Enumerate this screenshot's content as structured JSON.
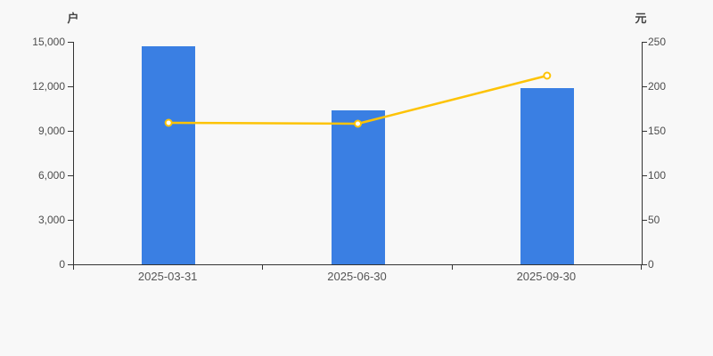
{
  "page": {
    "background": "#f8f8f8"
  },
  "chart_data": {
    "type": "bar",
    "subtype": "bar-line-dual-axis",
    "title": "",
    "legend_position": "none",
    "grid_lines": false,
    "categories": [
      "2025-03-31",
      "2025-06-30",
      "2025-09-30"
    ],
    "series": [
      {
        "type": "bar",
        "axis": "left",
        "unit": "户",
        "values": [
          14700,
          10400,
          11900
        ],
        "color": "#3a7fe3"
      },
      {
        "type": "line",
        "axis": "right",
        "unit": "元",
        "values": [
          159,
          158,
          212
        ],
        "color": "#fdc306",
        "marker": "hollow-circle"
      }
    ],
    "left_axis": {
      "unit": "户",
      "min": 0,
      "max": 15000,
      "tick_labels": [
        "0",
        "3,000",
        "6,000",
        "9,000",
        "12,000",
        "15,000"
      ]
    },
    "right_axis": {
      "unit": "元",
      "min": 0,
      "max": 250,
      "tick_labels": [
        "0",
        "50",
        "100",
        "150",
        "200",
        "250"
      ]
    }
  },
  "colors": {
    "background": "#f8f8f8",
    "bar": "#3a7fe3",
    "line": "#fdc306",
    "marker_fill": "#ffffff",
    "axis": "#333333",
    "tick_label": "#4d4d4d",
    "category_label": "#555555"
  }
}
